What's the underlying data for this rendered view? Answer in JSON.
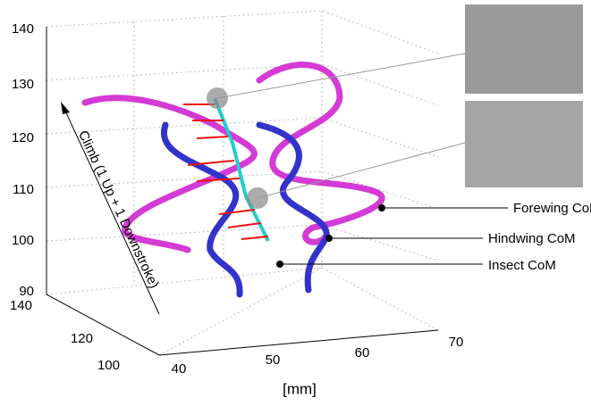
{
  "axes": {
    "z_ticks": [
      140,
      130,
      120,
      110,
      100,
      90
    ],
    "y_ticks": [
      140,
      120,
      100
    ],
    "x_ticks": [
      40,
      50,
      60,
      70
    ],
    "x_label": "[mm]",
    "annotation": "Climb (1 Up + 1 Downstroke)"
  },
  "callouts": [
    "Forewing CoM",
    "Hindwing CoM",
    "Insect CoM"
  ]
}
